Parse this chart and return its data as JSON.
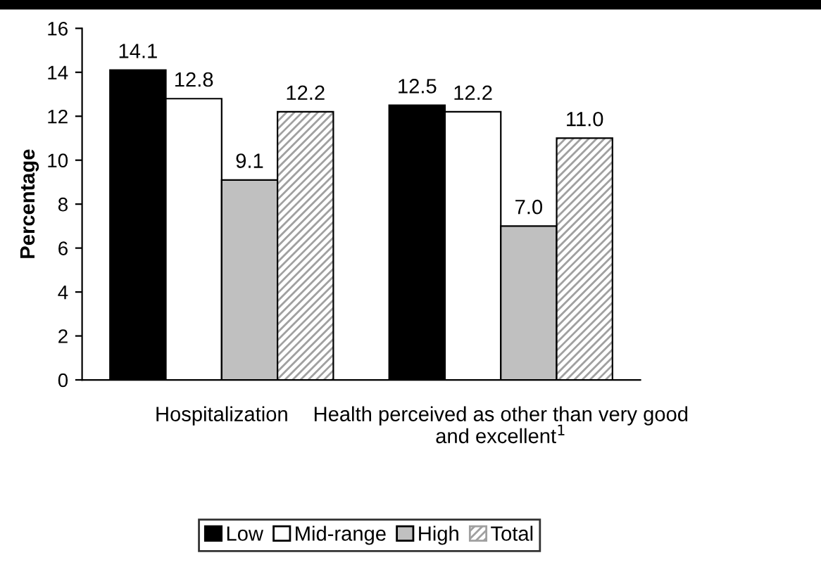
{
  "chart_data": {
    "type": "bar",
    "ylabel": "Percentage",
    "categories": [
      "Hospitalization",
      "Health perceived as other than very good and excellent$^{1}$"
    ],
    "series": [
      {
        "name": "Low",
        "color": "#000000",
        "values": [
          14.1,
          12.5
        ]
      },
      {
        "name": "Mid-range",
        "color": "#ffffff",
        "values": [
          12.8,
          12.2
        ]
      },
      {
        "name": "High",
        "color": "#c0c0c0",
        "values": [
          9.1,
          7.0
        ]
      },
      {
        "name": "Total",
        "color": "#a0a0a0",
        "values": [
          12.2,
          11.0
        ]
      }
    ],
    "value_labels": [
      [
        "14.1",
        "12.5"
      ],
      [
        "12.8",
        "12.2"
      ],
      [
        "9.1",
        "7.0"
      ],
      [
        "12.2",
        "11.0"
      ]
    ],
    "ylim": [
      0,
      16
    ],
    "yticks": [
      0,
      2,
      4,
      6,
      8,
      10,
      12,
      14,
      16
    ],
    "grid": false,
    "legend": "bottom"
  }
}
